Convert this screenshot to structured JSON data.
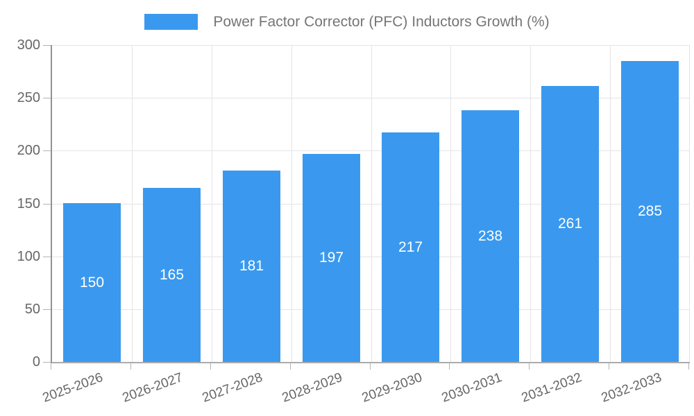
{
  "chart_data": {
    "type": "bar",
    "title": "Power Factor Corrector (PFC) Inductors Growth (%)",
    "categories": [
      "2025-2026",
      "2026-2027",
      "2027-2028",
      "2028-2029",
      "2029-2030",
      "2030-2031",
      "2031-2032",
      "2032-2033"
    ],
    "values": [
      150,
      165,
      181,
      197,
      217,
      238,
      261,
      285
    ],
    "xlabel": "",
    "ylabel": "",
    "ylim": [
      0,
      300
    ],
    "yticks": [
      0,
      50,
      100,
      150,
      200,
      250,
      300
    ],
    "grid": true,
    "legend_position": "top",
    "x_label_rotation_deg": -20,
    "colors": {
      "bar": "#3A99EE",
      "value_label": "#ffffff",
      "legend_text": "#757575",
      "tick_label": "#666666",
      "gridline": "#e4e4e4",
      "tick_mark": "#b3b3b3",
      "axis_left": "#929292",
      "axis_bottom": "#ababab"
    }
  }
}
